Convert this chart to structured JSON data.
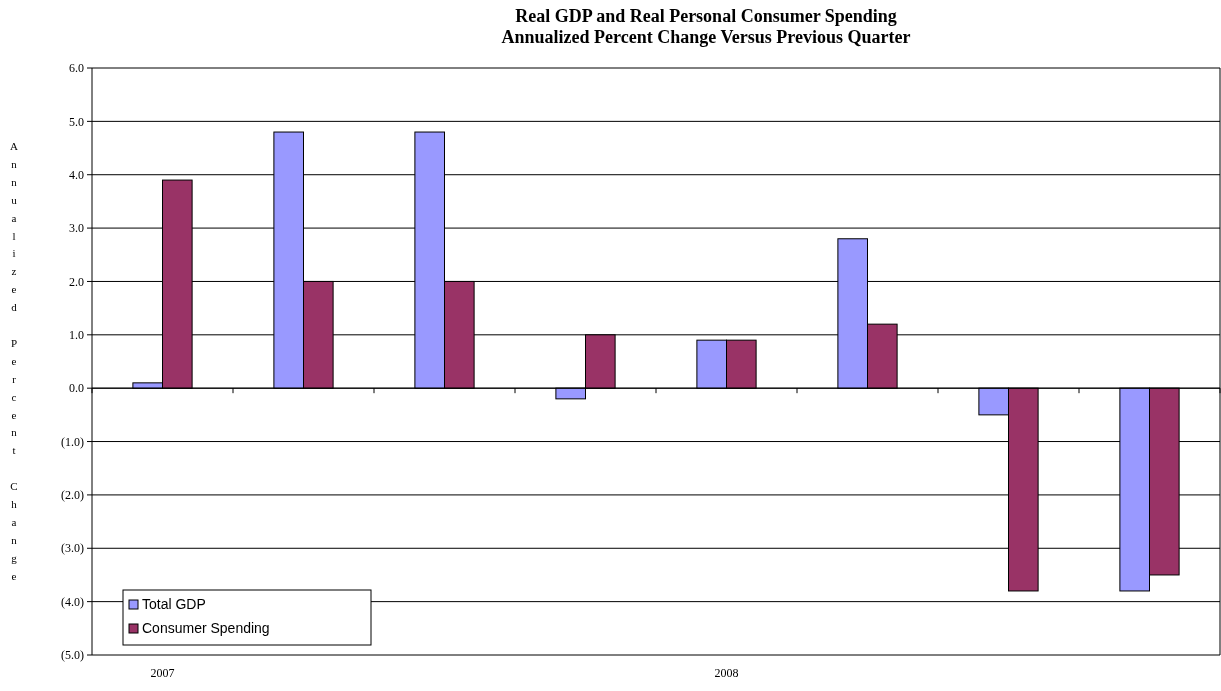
{
  "chart_data": {
    "type": "bar",
    "title": "Real GDP and Real Personal Consumer Spending\nAnnualized Percent Change Versus Previous Quarter",
    "ylabel": "Annualized Percent Change",
    "categories": [
      "2007",
      null,
      null,
      null,
      "2008",
      null,
      null,
      null
    ],
    "series": [
      {
        "name": "Total GDP",
        "color": "#9999ff",
        "values": [
          0.1,
          4.8,
          4.8,
          -0.2,
          0.9,
          2.8,
          -0.5,
          -3.8
        ]
      },
      {
        "name": "Consumer Spending",
        "color": "#993366",
        "values": [
          3.9,
          2.0,
          2.0,
          1.0,
          0.9,
          1.2,
          -3.8,
          -3.5
        ]
      }
    ],
    "ylim": [
      -5,
      6
    ],
    "yticks": [
      {
        "value": -5,
        "label": "(5.0)"
      },
      {
        "value": -4,
        "label": "(4.0)"
      },
      {
        "value": -3,
        "label": "(3.0)"
      },
      {
        "value": -2,
        "label": "(2.0)"
      },
      {
        "value": -1,
        "label": "(1.0)"
      },
      {
        "value": 0,
        "label": "0.0"
      },
      {
        "value": 1,
        "label": "1.0"
      },
      {
        "value": 2,
        "label": "2.0"
      },
      {
        "value": 3,
        "label": "3.0"
      },
      {
        "value": 4,
        "label": "4.0"
      },
      {
        "value": 5,
        "label": "5.0"
      },
      {
        "value": 6,
        "label": "6.0"
      }
    ],
    "grid": "y",
    "legend": "bottom left"
  }
}
